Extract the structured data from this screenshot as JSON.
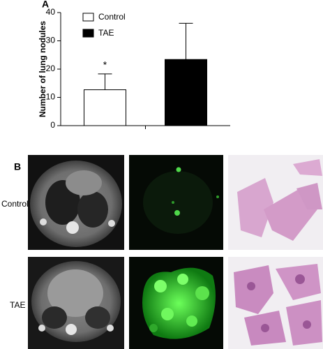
{
  "panel_a_label": "A",
  "chart_data": {
    "type": "bar",
    "ylabel": "Number of lung nodules",
    "categories": [
      null
    ],
    "series": [
      {
        "name": "Control",
        "color": "#ffffff",
        "values": [
          12.7
        ],
        "errors": [
          5.6
        ]
      },
      {
        "name": "TAE",
        "color": "#000000",
        "values": [
          23.4
        ],
        "errors": [
          12.8
        ]
      }
    ],
    "annotation": "*",
    "ylim": [
      0,
      40
    ],
    "yticks": [
      0,
      10,
      20,
      30,
      40
    ],
    "grid": false
  },
  "panel_b": {
    "label": "B",
    "rows": [
      "Control",
      "TAE"
    ]
  }
}
